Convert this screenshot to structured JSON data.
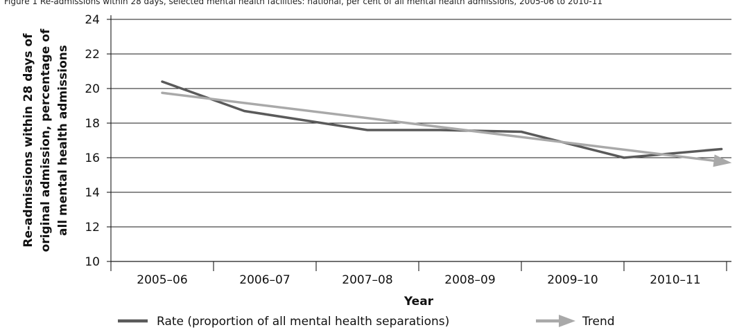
{
  "chart_data": {
    "type": "line",
    "caption": "Figure 1  Re-admissions within 28 days, selected mental health facilities: national, per cent of all mental health admissions, 2005-06 to 2010-11",
    "xlabel": "Year",
    "ylabel_lines": [
      "Re-admissions within 28 days of",
      "original admission, percentage of",
      "all mental health admissions"
    ],
    "categories": [
      "2005–06",
      "2006–07",
      "2007–08",
      "2008–09",
      "2009–10",
      "2010–11"
    ],
    "ylim": [
      10,
      24
    ],
    "yticks": [
      10,
      12,
      14,
      16,
      18,
      20,
      22,
      24
    ],
    "grid": true,
    "legend_position": "bottom",
    "series": [
      {
        "name": "Rate (proportion of all mental health separations)",
        "color": "#5a5a5a",
        "style": "line",
        "x": [
          0,
          0.8,
          2,
          2.7,
          3.5,
          4.5,
          5.45
        ],
        "values": [
          20.4,
          18.7,
          17.6,
          17.6,
          17.5,
          16.0,
          16.5
        ]
      },
      {
        "name": "Trend",
        "color": "#a9a9a9",
        "style": "arrow",
        "x": [
          0,
          5.55
        ],
        "values": [
          19.75,
          15.7
        ]
      }
    ]
  }
}
